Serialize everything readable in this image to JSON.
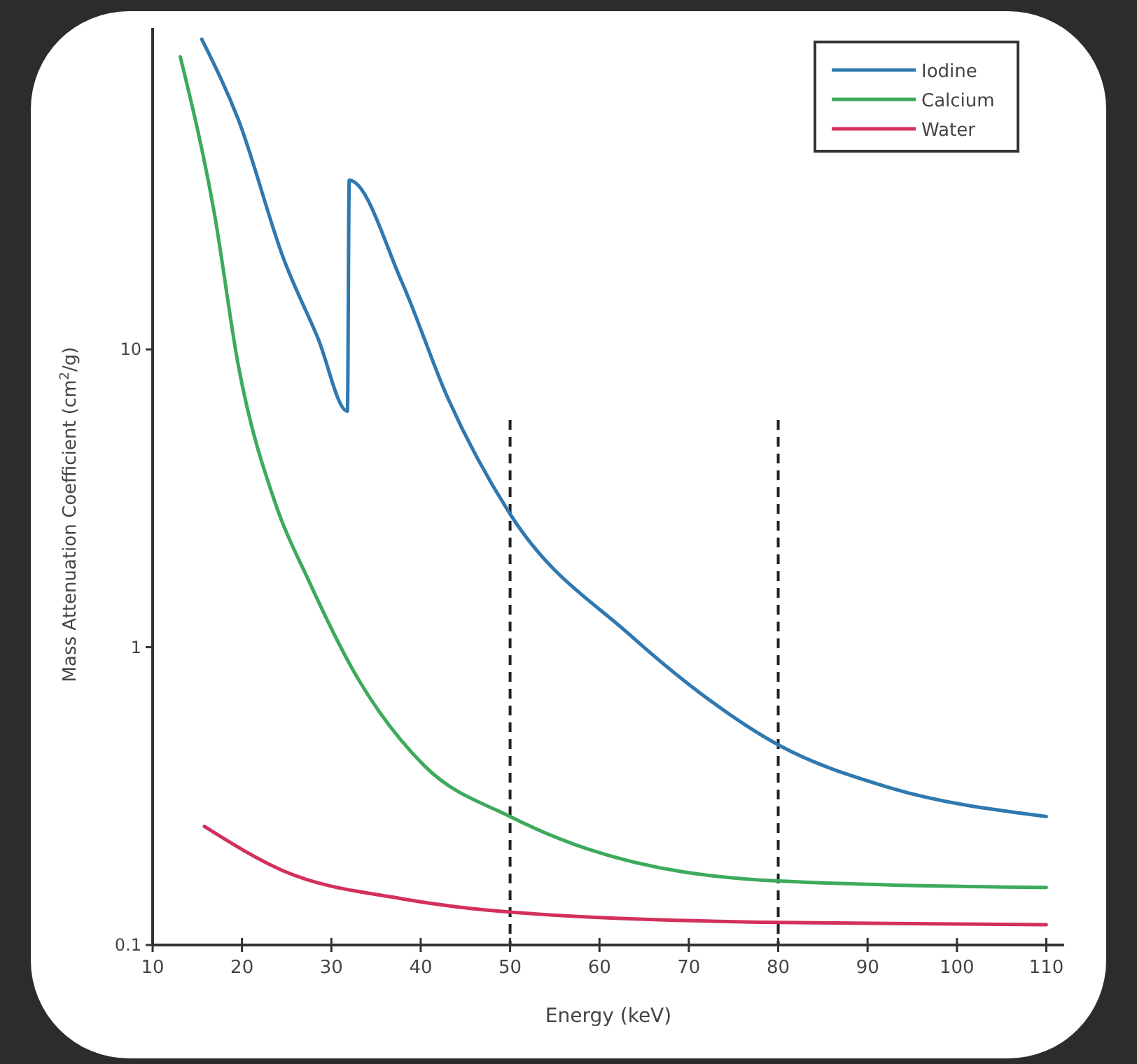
{
  "chart_data": {
    "type": "line",
    "xlabel": "Energy (keV)",
    "ylabel": "Mass Attenuation Coefficient (cm$^{2}$/g)",
    "log": "y",
    "xlim": [
      10,
      112
    ],
    "xticks": [
      10,
      20,
      30,
      40,
      50,
      60,
      70,
      80,
      90,
      100,
      110
    ],
    "ylim": [
      0.1,
      120
    ],
    "yticks": [
      0.1,
      1,
      10
    ],
    "grid": false,
    "legend": "top right",
    "marker": "none",
    "line_style": "solid",
    "series": [
      {
        "name": "Iodine",
        "color": "#2f78b0",
        "x": [
          15.5,
          19.6,
          24.7,
          28.5,
          31.8,
          32,
          37.9,
          43,
          50,
          63.4,
          71.3,
          80,
          92.1,
          110
        ],
        "values": [
          110,
          59,
          20,
          10.9,
          6.2,
          37,
          16.8,
          6.9,
          2.8,
          1.1,
          0.7,
          0.47,
          0.34,
          0.27
        ]
      },
      {
        "name": "Calcium",
        "color": "#3daa5c",
        "x": [
          13.1,
          16.9,
          19.6,
          23.8,
          27.4,
          32.6,
          40.4,
          50,
          58.7,
          80,
          110
        ],
        "values": [
          96,
          28.7,
          8.8,
          3.0,
          1.69,
          0.82,
          0.4,
          0.27,
          0.21,
          0.164,
          0.156
        ]
      },
      {
        "name": "Water",
        "color": "#d3305c",
        "x": [
          15.8,
          24.7,
          37.9,
          50,
          80,
          110
        ],
        "values": [
          0.25,
          0.177,
          0.143,
          0.129,
          0.119,
          0.117
        ]
      }
    ],
    "ref_lines": [
      {
        "axis": "x",
        "value": 50,
        "color": "#222222",
        "line_style": "dashed"
      },
      {
        "axis": "x",
        "value": 80,
        "color": "#222222",
        "line_style": "dashed"
      }
    ]
  }
}
